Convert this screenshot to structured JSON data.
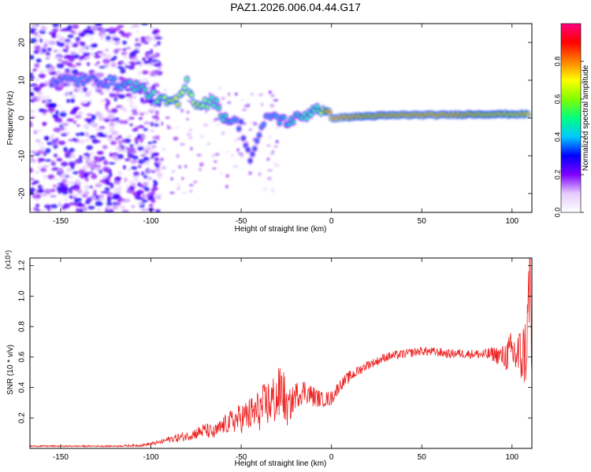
{
  "title": "PAZ1.2026.006.04.44.G17",
  "chart_data": [
    {
      "type": "heatmap",
      "xlabel": "Height of straight line (km)",
      "ylabel": "Frequency (Hz)",
      "xlim": [
        -167,
        111
      ],
      "ylim": [
        -25,
        25
      ],
      "xticks": [
        -150,
        -100,
        -50,
        0,
        50,
        100
      ],
      "yticks": [
        -20,
        -10,
        0,
        10,
        20
      ],
      "colorbar": {
        "label": "Normalized spectral amplitude",
        "range": [
          0,
          1
        ],
        "ticks": [
          "0.0",
          "0.2",
          "0.4",
          "0.6",
          "0.8"
        ],
        "colors": [
          "#ffffff",
          "#e6ccff",
          "#8000ff",
          "#0000ff",
          "#00c8ff",
          "#00ff80",
          "#80ff00",
          "#ffff00",
          "#ff8000",
          "#ff0000",
          "#ff0080"
        ]
      },
      "ridge": [
        {
          "x": -155,
          "y": 10,
          "a": 0.35
        },
        {
          "x": -140,
          "y": 10,
          "a": 0.4
        },
        {
          "x": -130,
          "y": 10,
          "a": 0.35
        },
        {
          "x": -108,
          "y": 8.5,
          "a": 0.5
        },
        {
          "x": -95,
          "y": 4.5,
          "a": 0.6
        },
        {
          "x": -85,
          "y": 4,
          "a": 0.75
        },
        {
          "x": -80,
          "y": 9.5,
          "a": 0.6
        },
        {
          "x": -75,
          "y": 3.5,
          "a": 0.7
        },
        {
          "x": -65,
          "y": 4.5,
          "a": 0.55
        },
        {
          "x": -60,
          "y": 0.5,
          "a": 0.5
        },
        {
          "x": -50,
          "y": -2,
          "a": 0.35
        },
        {
          "x": -45,
          "y": -11,
          "a": 0.35
        },
        {
          "x": -35,
          "y": 1,
          "a": 0.4
        },
        {
          "x": -25,
          "y": -1,
          "a": 0.45
        },
        {
          "x": -15,
          "y": 0.5,
          "a": 0.55
        },
        {
          "x": -8,
          "y": 3,
          "a": 0.55
        },
        {
          "x": 0,
          "y": 0,
          "a": 0.98
        },
        {
          "x": 20,
          "y": 0.5,
          "a": 0.85
        },
        {
          "x": 40,
          "y": 0.8,
          "a": 0.9
        },
        {
          "x": 60,
          "y": 0.8,
          "a": 0.92
        },
        {
          "x": 80,
          "y": 1,
          "a": 0.85
        },
        {
          "x": 100,
          "y": 1,
          "a": 0.8
        },
        {
          "x": 110,
          "y": 1,
          "a": 0.8
        }
      ]
    },
    {
      "type": "line",
      "xlabel": "Height of straight line (km)",
      "ylabel": "SNR (10 * v/v)",
      "scale_label": "(x10⁴)",
      "xlim": [
        -167,
        111
      ],
      "ylim": [
        0,
        1.25
      ],
      "xticks": [
        -150,
        -100,
        -50,
        0,
        50,
        100
      ],
      "yticks": [
        "0.2",
        "0.4",
        "0.6",
        "0.8",
        "1.0",
        "1.2"
      ],
      "series": [
        {
          "color": "#ee2222",
          "x": [
            -167,
            -150,
            -120,
            -105,
            -100,
            -95,
            -90,
            -85,
            -80,
            -75,
            -70,
            -65,
            -60,
            -55,
            -50,
            -45,
            -40,
            -35,
            -30,
            -27,
            -25,
            -22,
            -20,
            -15,
            -10,
            -5,
            0,
            5,
            10,
            15,
            20,
            25,
            30,
            35,
            40,
            45,
            50,
            55,
            60,
            65,
            70,
            75,
            80,
            85,
            90,
            95,
            100,
            105,
            108,
            110,
            111
          ],
          "y": [
            0.015,
            0.015,
            0.015,
            0.02,
            0.03,
            0.04,
            0.06,
            0.07,
            0.08,
            0.1,
            0.12,
            0.1,
            0.15,
            0.18,
            0.2,
            0.22,
            0.25,
            0.3,
            0.33,
            0.4,
            0.25,
            0.3,
            0.35,
            0.38,
            0.34,
            0.32,
            0.33,
            0.42,
            0.47,
            0.51,
            0.55,
            0.57,
            0.6,
            0.61,
            0.62,
            0.63,
            0.64,
            0.635,
            0.63,
            0.62,
            0.625,
            0.62,
            0.62,
            0.615,
            0.62,
            0.6,
            0.63,
            0.6,
            0.65,
            1.2,
            0.5
          ],
          "amp": [
            0.005,
            0.005,
            0.005,
            0.008,
            0.01,
            0.015,
            0.02,
            0.03,
            0.03,
            0.04,
            0.05,
            0.05,
            0.06,
            0.08,
            0.1,
            0.12,
            0.14,
            0.16,
            0.18,
            0.2,
            0.12,
            0.1,
            0.09,
            0.08,
            0.07,
            0.05,
            0.05,
            0.04,
            0.04,
            0.035,
            0.03,
            0.03,
            0.03,
            0.03,
            0.03,
            0.03,
            0.03,
            0.03,
            0.03,
            0.03,
            0.03,
            0.03,
            0.03,
            0.04,
            0.05,
            0.08,
            0.15,
            0.2,
            0.25,
            0.3,
            0.3
          ]
        }
      ]
    }
  ]
}
